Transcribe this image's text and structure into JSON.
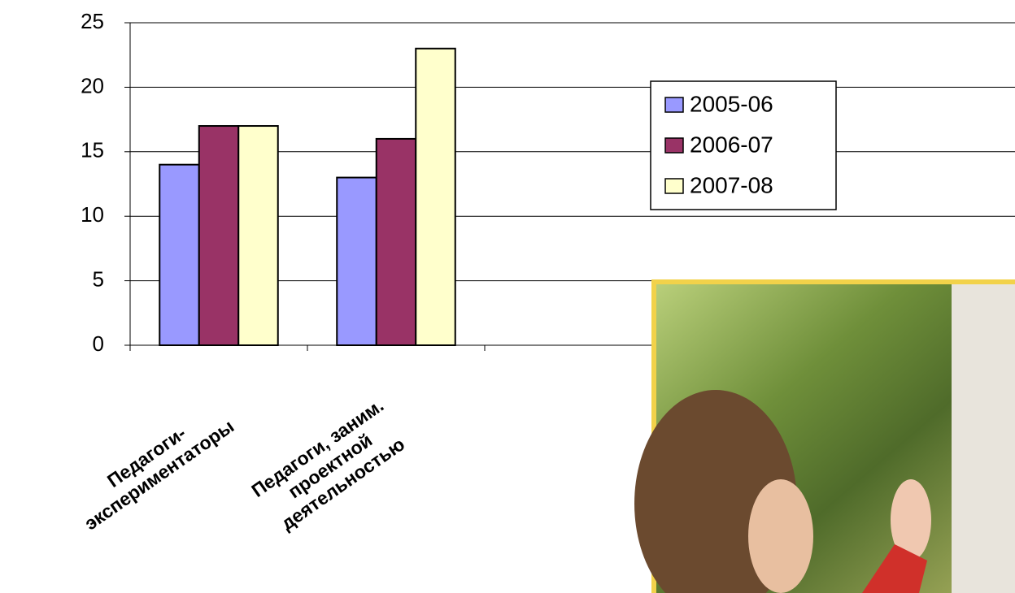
{
  "chart_data": {
    "type": "bar",
    "categories": [
      [
        "Педагоги-",
        "экспериментаторы"
      ],
      [
        "Педагоги, заним.",
        "проектной",
        "деятельностью"
      ],
      null,
      null,
      null
    ],
    "series": [
      {
        "name": "2005-06",
        "color": "#9999ff",
        "values": [
          14,
          13,
          null,
          null,
          null
        ]
      },
      {
        "name": "2006-07",
        "color": "#993366",
        "values": [
          17,
          16,
          null,
          null,
          null
        ]
      },
      {
        "name": "2007-08",
        "color": "#ffffcc",
        "values": [
          17,
          23,
          null,
          null,
          null
        ]
      }
    ],
    "ylim": [
      0,
      25
    ],
    "yticks": [
      0,
      5,
      10,
      15,
      20,
      25
    ],
    "grid": true,
    "legend": "right"
  }
}
